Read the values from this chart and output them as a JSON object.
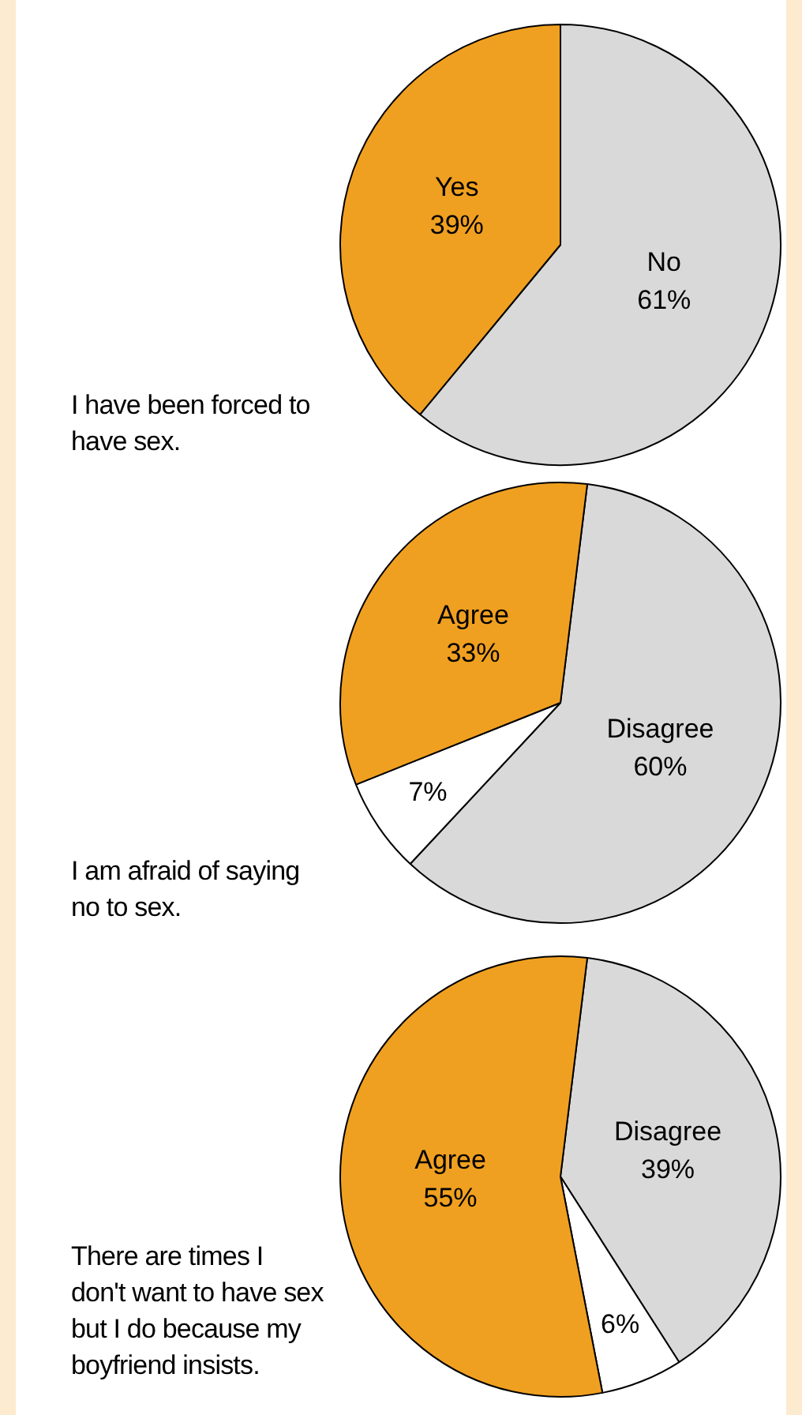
{
  "chart_data": [
    {
      "type": "pie",
      "title": "I have been forced to have sex.",
      "categories": [
        "No",
        "Yes"
      ],
      "values": [
        61,
        39
      ],
      "value_labels": [
        "61%",
        "39%"
      ],
      "colors": [
        "#d9d9d9",
        "#f0a020"
      ],
      "legend": false
    },
    {
      "type": "pie",
      "title": "I am afraid of saying no to sex.",
      "categories": [
        "Disagree",
        null,
        "Agree"
      ],
      "values": [
        60,
        7,
        33
      ],
      "value_labels": [
        "60%",
        "7%",
        "33%"
      ],
      "colors": [
        "#d9d9d9",
        "#ffffff",
        "#f0a020"
      ],
      "legend": false
    },
    {
      "type": "pie",
      "title": "There are times I don't want to have sex but I do because my boyfriend insists.",
      "categories": [
        "Disagree",
        null,
        "Agree"
      ],
      "values": [
        39,
        6,
        55
      ],
      "value_labels": [
        "39%",
        "6%",
        "55%"
      ],
      "colors": [
        "#d9d9d9",
        "#ffffff",
        "#f0a020"
      ],
      "legend": false
    }
  ]
}
